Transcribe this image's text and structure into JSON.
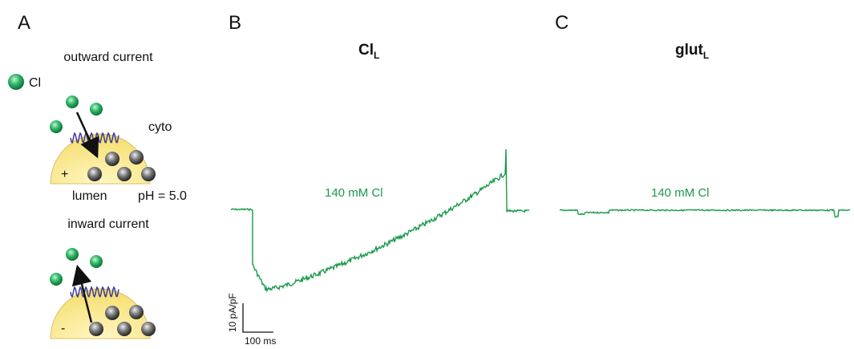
{
  "panels": [
    {
      "label": "A",
      "outward": {
        "heading": "outward current",
        "legend": "Cl",
        "side_top": "cyto",
        "charge": "+",
        "side_bottom": "lumen",
        "ph": "pH = 5.0"
      },
      "inward": {
        "heading": "inward current",
        "charge": "-"
      }
    },
    {
      "label": "B",
      "title": {
        "main": "Cl",
        "sub": "L"
      },
      "trace_label": "140 mM Cl",
      "scale_y": "10 pA/pF",
      "scale_x": "100 ms"
    },
    {
      "label": "C",
      "title": {
        "main": "glut",
        "sub": "L"
      },
      "trace_label": "140 mM Cl"
    }
  ]
}
